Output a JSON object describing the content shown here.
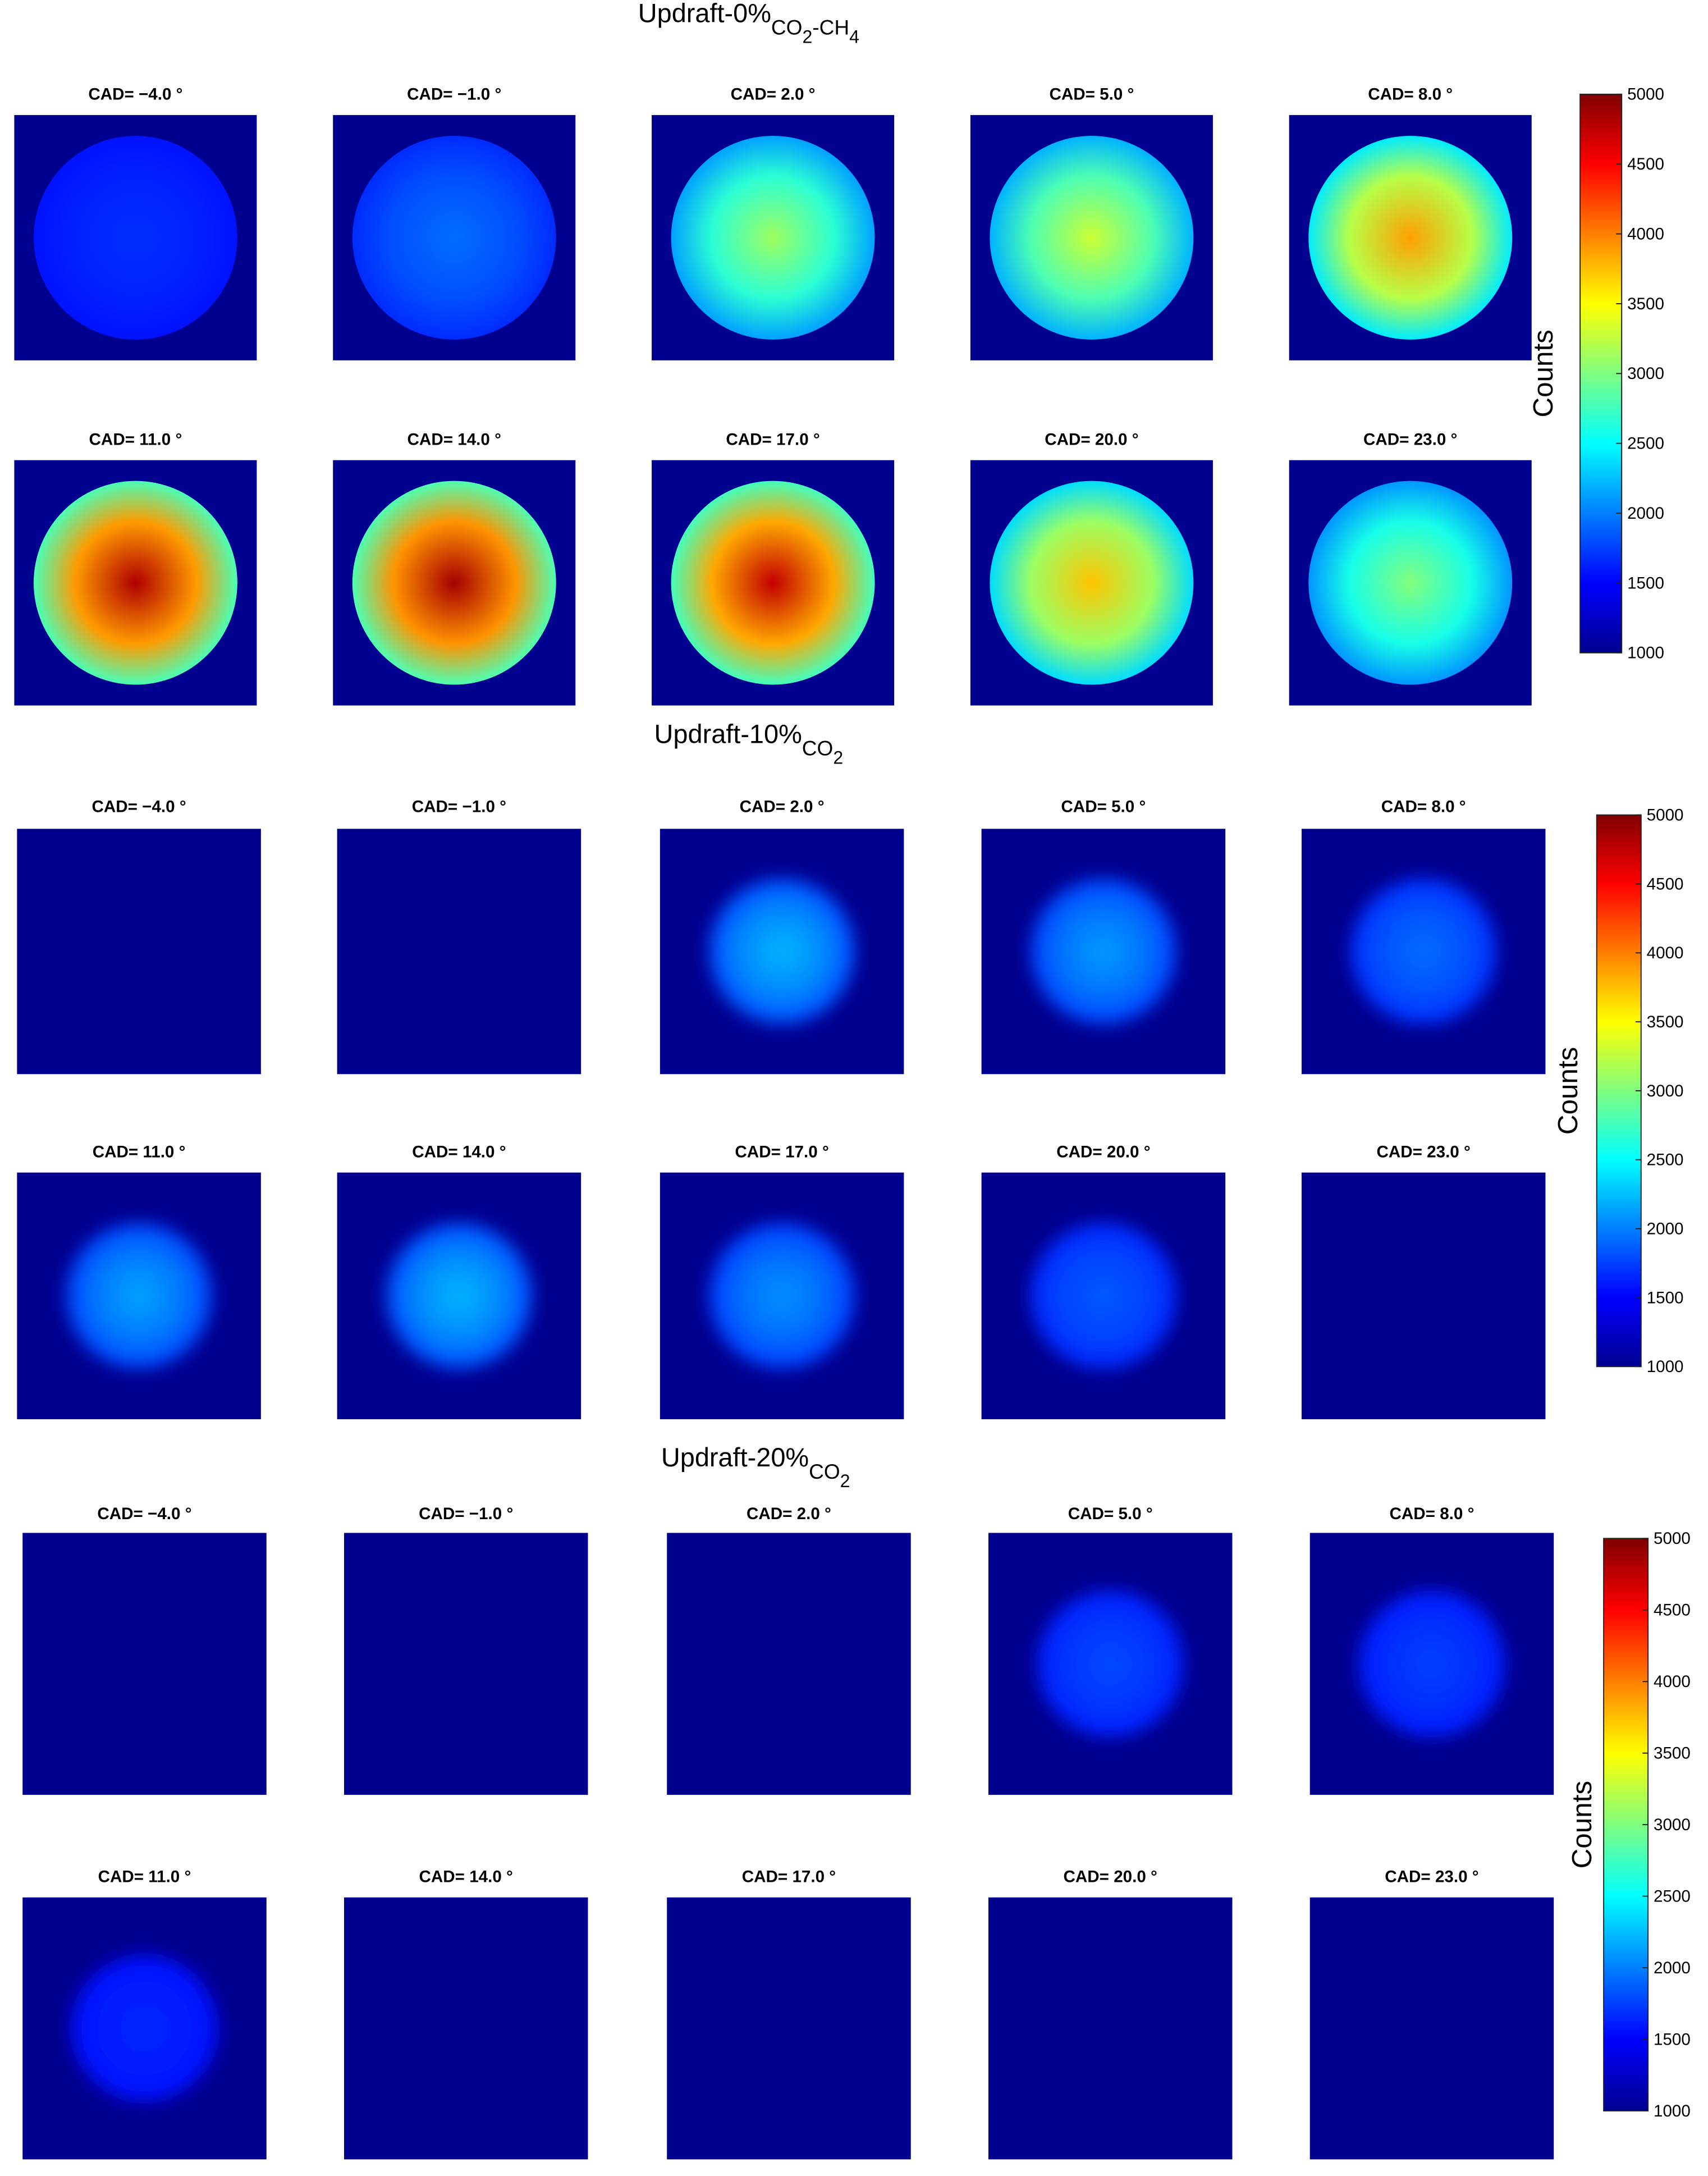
{
  "groups": [
    {
      "title": [
        "Updraft-0%",
        "CO",
        "2",
        "-CH",
        "4"
      ],
      "panels": [
        "CAD= −4.0 °",
        "CAD= −1.0 °",
        "CAD= 2.0 °",
        "CAD= 5.0 °",
        "CAD= 8.0 °",
        "CAD= 11.0 °",
        "CAD= 14.0 °",
        "CAD= 17.0 °",
        "CAD= 20.0 °",
        "CAD= 23.0 °"
      ],
      "colorbar": {
        "label": "Counts",
        "ticks": [
          1000,
          1500,
          2000,
          2500,
          3000,
          3500,
          4000,
          4500,
          5000
        ]
      }
    },
    {
      "title": [
        "Updraft-10%",
        "CO",
        "2"
      ],
      "panels": [
        "CAD= −4.0 °",
        "CAD= −1.0 °",
        "CAD= 2.0 °",
        "CAD= 5.0 °",
        "CAD= 8.0 °",
        "CAD= 11.0 °",
        "CAD= 14.0 °",
        "CAD= 17.0 °",
        "CAD= 20.0 °",
        "CAD= 23.0 °"
      ],
      "colorbar": {
        "label": "Counts",
        "ticks": [
          1000,
          1500,
          2000,
          2500,
          3000,
          3500,
          4000,
          4500,
          5000
        ]
      }
    },
    {
      "title": [
        "Updraft-20%",
        "CO",
        "2"
      ],
      "panels": [
        "CAD= −4.0 °",
        "CAD= −1.0 °",
        "CAD= 2.0 °",
        "CAD= 5.0 °",
        "CAD= 8.0 °",
        "CAD= 11.0 °",
        "CAD= 14.0 °",
        "CAD= 17.0 °",
        "CAD= 20.0 °",
        "CAD= 23.0 °"
      ],
      "colorbar": {
        "label": "Counts",
        "ticks": [
          1000,
          1500,
          2000,
          2500,
          3000,
          3500,
          4000,
          4500,
          5000
        ]
      }
    }
  ]
}
